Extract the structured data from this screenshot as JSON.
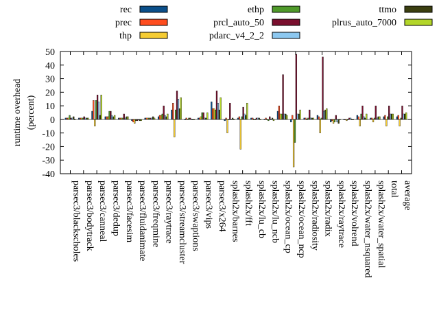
{
  "chart_data": {
    "type": "bar",
    "ylabel": "runtime overhead (percent)",
    "ylabel_lines": [
      "runtime overhead",
      "(percent)"
    ],
    "xlabel": "",
    "ylim": [
      -40,
      50
    ],
    "yticks": [
      -40,
      -30,
      -20,
      -10,
      0,
      10,
      20,
      30,
      40,
      50
    ],
    "grid": false,
    "legend_position": "top",
    "categories": [
      "parsec3/blackscholes",
      "parsec3/bodytrack",
      "parsec3/canneal",
      "parsec3/dedup",
      "parsec3/facesim",
      "parsec3/fluidanimate",
      "parsec3/freqmine",
      "parsec3/raytrace",
      "parsec3/streamcluster",
      "parsec3/swaptions",
      "parsec3/vips",
      "parsec3/x264",
      "splash2x/barnes",
      "splash2x/fft",
      "splash2x/lu_cb",
      "splash2x/lu_ncb",
      "splash2x/ocean_cp",
      "splash2x/ocean_ncp",
      "splash2x/radiosity",
      "splash2x/radix",
      "splash2x/raytrace",
      "splash2x/volrend",
      "splash2x/water_nsquared",
      "splash2x/water_spatial",
      "total",
      "average"
    ],
    "series": [
      {
        "name": "rec",
        "color": "#0b4f8a",
        "values": [
          1,
          1,
          6,
          2,
          1,
          -1,
          1,
          2,
          7,
          0,
          1,
          13,
          -1,
          1,
          1,
          0,
          6,
          -2,
          1,
          3,
          -2,
          0,
          3,
          1,
          2,
          2
        ]
      },
      {
        "name": "prec",
        "color": "#ff4d1f",
        "values": [
          1,
          1,
          14,
          2,
          1,
          -2,
          1,
          3,
          12,
          1,
          1,
          8,
          1,
          2,
          1,
          1,
          10,
          3,
          1,
          2,
          -1,
          0,
          2,
          1,
          3,
          3
        ]
      },
      {
        "name": "thp",
        "color": "#f5cc33",
        "values": [
          1,
          1,
          -5,
          2,
          1,
          -3,
          1,
          3,
          -13,
          0,
          2,
          8,
          -10,
          -22,
          0,
          0,
          4,
          -35,
          0,
          -10,
          -3,
          -1,
          -5,
          -2,
          -5,
          -5
        ]
      },
      {
        "name": "ethp",
        "color": "#4f9a2a",
        "values": [
          3,
          1,
          14,
          6,
          1,
          -1,
          1,
          4,
          7,
          1,
          5,
          7,
          0,
          2,
          0,
          -1,
          4,
          -17,
          1,
          1,
          -2,
          0,
          4,
          1,
          2,
          1
        ]
      },
      {
        "name": "prcl_auto_50",
        "color": "#7a0f2e",
        "values": [
          1,
          2,
          18,
          6,
          4,
          -1,
          1,
          10,
          21,
          1,
          5,
          21,
          12,
          9,
          1,
          2,
          33,
          48,
          7,
          46,
          3,
          1,
          10,
          10,
          10,
          10
        ]
      },
      {
        "name": "pdarc_v4_2_2",
        "color": "#8cc8f0",
        "values": [
          1,
          1,
          13,
          3,
          1,
          0,
          1,
          3,
          15,
          0,
          1,
          12,
          0,
          4,
          1,
          0,
          4,
          4,
          1,
          6,
          -2,
          1,
          2,
          1,
          4,
          4
        ]
      },
      {
        "name": "ttmo",
        "color": "#3b3f10",
        "values": [
          2,
          1,
          3,
          2,
          2,
          -1,
          2,
          2,
          8,
          0,
          1,
          7,
          1,
          3,
          1,
          1,
          4,
          4,
          1,
          7,
          -3,
          0,
          1,
          2,
          4,
          4
        ]
      },
      {
        "name": "plrus_auto_7000",
        "color": "#b3d629",
        "values": [
          0,
          1,
          18,
          3,
          2,
          -1,
          1,
          4,
          16,
          0,
          5,
          16,
          0,
          12,
          0,
          -1,
          3,
          7,
          1,
          8,
          0,
          0,
          4,
          2,
          4,
          5
        ]
      }
    ]
  }
}
